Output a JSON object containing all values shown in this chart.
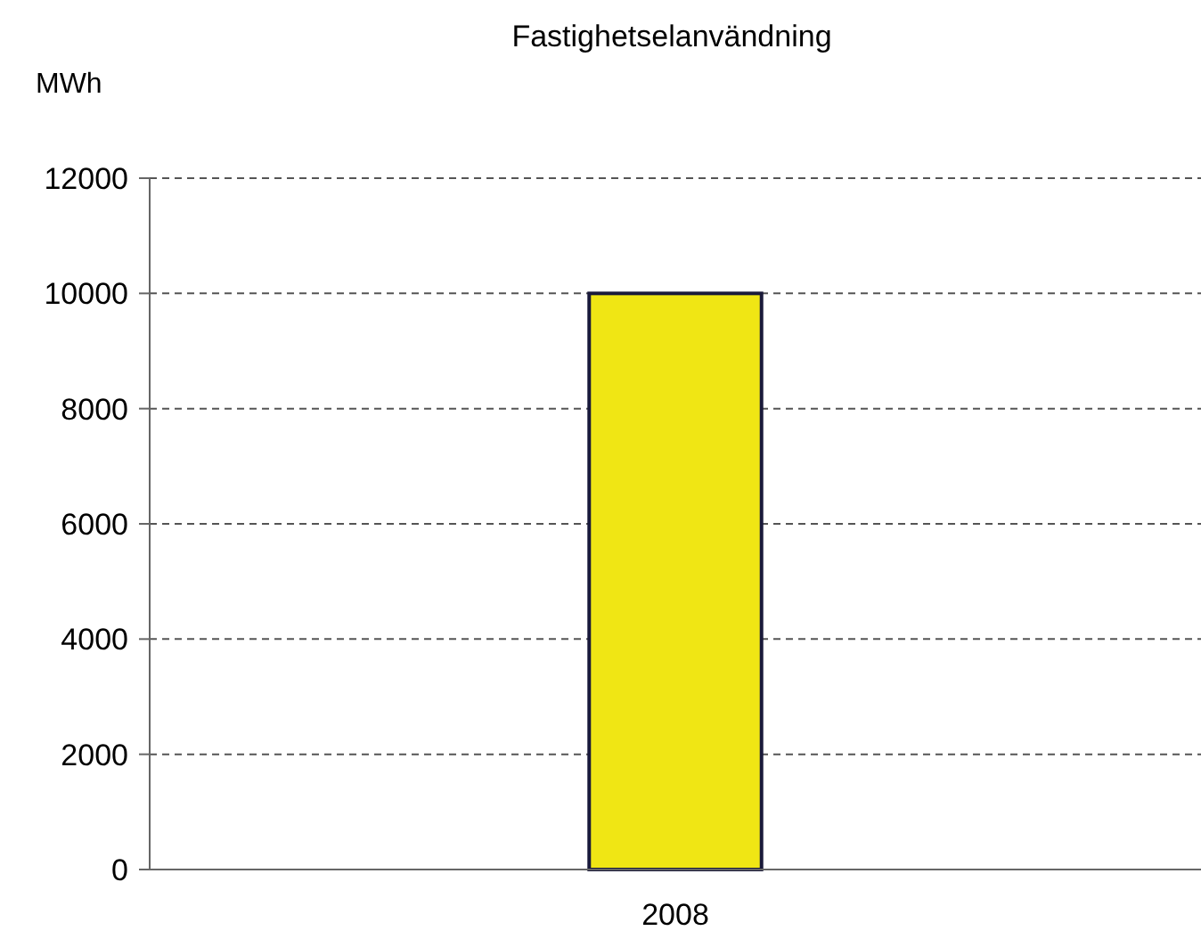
{
  "chart_data": {
    "type": "bar",
    "title": "Fastighetselanvändning",
    "ylabel": "MWh",
    "categories": [
      "2008"
    ],
    "values": [
      10000
    ],
    "color": "#f0e614",
    "ylim": [
      0,
      12000
    ],
    "yticks": [
      0,
      2000,
      4000,
      6000,
      8000,
      10000,
      12000
    ],
    "grid": "y"
  }
}
